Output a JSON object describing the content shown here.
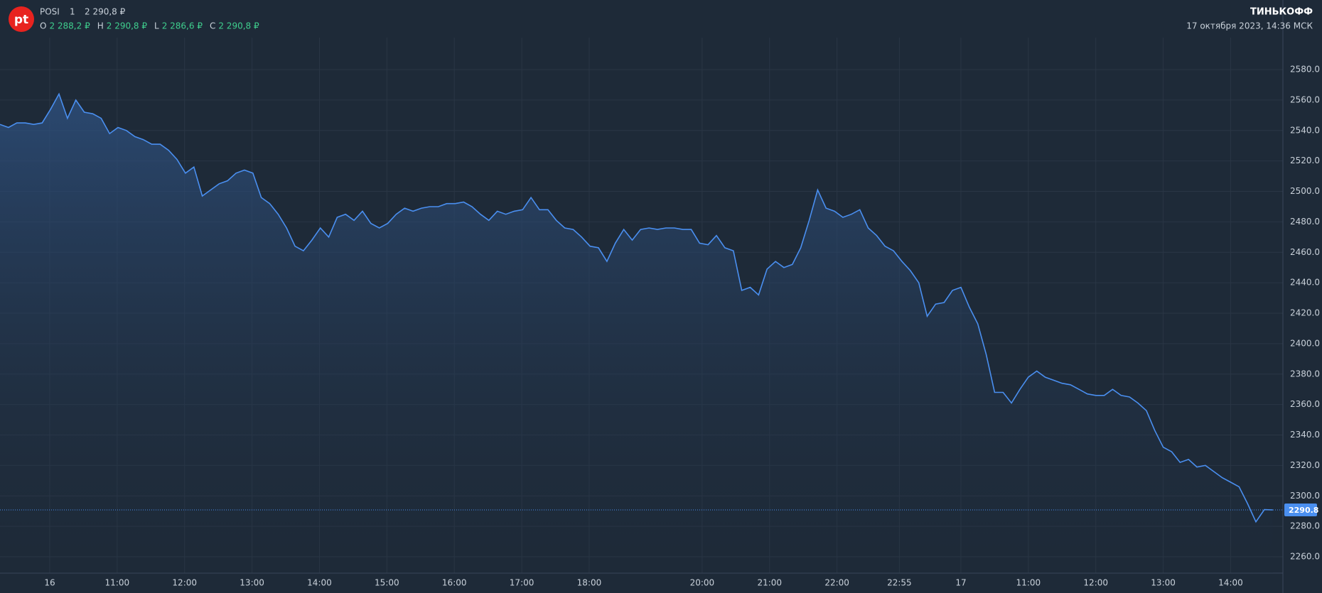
{
  "header": {
    "logo": "pt",
    "symbol": "POSI",
    "interval": "1",
    "price": "2 290,8 ₽",
    "ohlc": [
      {
        "key": "O",
        "value": "2 288,2 ₽"
      },
      {
        "key": "H",
        "value": "2 290,8 ₽"
      },
      {
        "key": "L",
        "value": "2 286,6 ₽"
      },
      {
        "key": "C",
        "value": "2 290,8 ₽"
      }
    ],
    "brand": "ТИНЬКОФФ",
    "datetime": "17 октября 2023, 14:36 МСК"
  },
  "chart_data": {
    "type": "area",
    "color": "#4a8ff0",
    "grid": true,
    "xlim": [
      0,
      152.2
    ],
    "xticks": [
      {
        "value": 5.9,
        "label": "16"
      },
      {
        "value": 13.9,
        "label": "11:00"
      },
      {
        "value": 21.9,
        "label": "12:00"
      },
      {
        "value": 29.9,
        "label": "13:00"
      },
      {
        "value": 37.9,
        "label": "14:00"
      },
      {
        "value": 45.9,
        "label": "15:00"
      },
      {
        "value": 53.9,
        "label": "16:00"
      },
      {
        "value": 61.9,
        "label": "17:00"
      },
      {
        "value": 69.9,
        "label": "18:00"
      },
      {
        "value": 83.3,
        "label": "20:00"
      },
      {
        "value": 91.3,
        "label": "21:00"
      },
      {
        "value": 99.3,
        "label": "22:00"
      },
      {
        "value": 106.7,
        "label": "22:55"
      },
      {
        "value": 114,
        "label": "17"
      },
      {
        "value": 122,
        "label": "11:00"
      },
      {
        "value": 130,
        "label": "12:00"
      },
      {
        "value": 138,
        "label": "13:00"
      },
      {
        "value": 146,
        "label": "14:00"
      }
    ],
    "ylim": [
      2249.3,
      2601
    ],
    "yticks": [
      {
        "value": 2260,
        "label": "2260.0"
      },
      {
        "value": 2280,
        "label": "2280.0"
      },
      {
        "value": 2300,
        "label": "2300.0"
      },
      {
        "value": 2320,
        "label": "2320.0"
      },
      {
        "value": 2340,
        "label": "2340.0"
      },
      {
        "value": 2360,
        "label": "2360.0"
      },
      {
        "value": 2380,
        "label": "2380.0"
      },
      {
        "value": 2400,
        "label": "2400.0"
      },
      {
        "value": 2420,
        "label": "2420.0"
      },
      {
        "value": 2440,
        "label": "2440.0"
      },
      {
        "value": 2460,
        "label": "2460.0"
      },
      {
        "value": 2480,
        "label": "2480.0"
      },
      {
        "value": 2500,
        "label": "2500.0"
      },
      {
        "value": 2520,
        "label": "2520.0"
      },
      {
        "value": 2540,
        "label": "2540.0"
      },
      {
        "value": 2560,
        "label": "2560.0"
      },
      {
        "value": 2580,
        "label": "2580.0"
      }
    ],
    "last_price": {
      "value": 2290.8,
      "label": "2290.8"
    },
    "series": [
      {
        "name": "POSI",
        "values": [
          2544,
          2542,
          2545,
          2545,
          2544,
          2545,
          2554,
          2564,
          2548,
          2560,
          2552,
          2551,
          2548,
          2538,
          2542,
          2540,
          2536,
          2534,
          2531,
          2531,
          2527,
          2521,
          2512,
          2516,
          2497,
          2501,
          2505,
          2507,
          2512,
          2514,
          2512,
          2496,
          2492,
          2485,
          2476,
          2464,
          2461,
          2468,
          2476,
          2470,
          2483,
          2485,
          2481,
          2487,
          2479,
          2476,
          2479,
          2485,
          2489,
          2487,
          2489,
          2490,
          2490,
          2492,
          2492,
          2493,
          2490,
          2485,
          2481,
          2487,
          2485,
          2487,
          2488,
          2496,
          2488,
          2488,
          2481,
          2476,
          2475,
          2470,
          2464,
          2463,
          2454,
          2466,
          2475,
          2468,
          2475,
          2476,
          2475,
          2476,
          2476,
          2475,
          2475,
          2466,
          2465,
          2471,
          2463,
          2461,
          2435,
          2437,
          2432,
          2449,
          2454,
          2450,
          2452,
          2463,
          2481,
          2501,
          2489,
          2487,
          2483,
          2485,
          2488,
          2476,
          2471,
          2464,
          2461,
          2454,
          2448,
          2440,
          2418,
          2426,
          2427,
          2435,
          2437,
          2424,
          2413,
          2393,
          2368,
          2368,
          2361,
          2370,
          2378,
          2382,
          2378,
          2376,
          2374,
          2373,
          2370,
          2367,
          2366,
          2366,
          2370,
          2366,
          2365,
          2361,
          2356,
          2343,
          2332,
          2329,
          2322,
          2324,
          2319,
          2320,
          2316,
          2312,
          2309,
          2306,
          2295,
          2283,
          2291,
          2290.8
        ]
      }
    ]
  }
}
